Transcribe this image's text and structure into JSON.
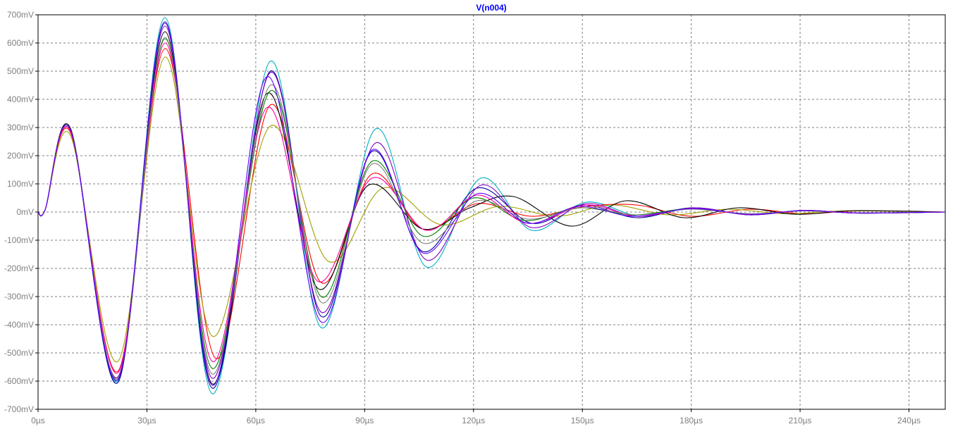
{
  "chart_data": {
    "type": "line",
    "title": "V(n004)",
    "xlabel": "",
    "ylabel": "",
    "xlim": [
      0,
      250
    ],
    "ylim": [
      -700,
      700
    ],
    "x_ticks": [
      0,
      30,
      60,
      90,
      120,
      150,
      180,
      210,
      240
    ],
    "x_tick_labels": [
      "0µs",
      "30µs",
      "60µs",
      "90µs",
      "120µs",
      "150µs",
      "180µs",
      "210µs",
      "240µs"
    ],
    "y_ticks": [
      700,
      600,
      500,
      400,
      300,
      200,
      100,
      0,
      -100,
      -200,
      -300,
      -400,
      -500,
      -600,
      -700
    ],
    "y_tick_labels": [
      "700mV",
      "600mV",
      "500mV",
      "400mV",
      "300mV",
      "200mV",
      "100mV",
      "0mV",
      "-100mV",
      "-200mV",
      "-300mV",
      "-400mV",
      "-500mV",
      "-600mV",
      "-700mV"
    ],
    "grid": true,
    "series": [
      {
        "color": "#00b0c0",
        "values": [
          [
            0,
            0
          ],
          [
            2,
            10
          ],
          [
            9,
            290
          ],
          [
            22,
            -600
          ],
          [
            35,
            690
          ],
          [
            48,
            -645
          ],
          [
            64,
            535
          ],
          [
            78,
            -410
          ],
          [
            93,
            295
          ],
          [
            107,
            -195
          ],
          [
            122,
            120
          ],
          [
            136,
            -65
          ],
          [
            151,
            35
          ],
          [
            166,
            -15
          ],
          [
            181,
            15
          ],
          [
            196,
            -10
          ],
          [
            211,
            6
          ],
          [
            226,
            -4
          ],
          [
            250,
            0
          ]
        ]
      },
      {
        "color": "#0000a0",
        "values": [
          [
            0,
            0
          ],
          [
            2,
            10
          ],
          [
            9,
            290
          ],
          [
            22,
            -605
          ],
          [
            35,
            675
          ],
          [
            48,
            -625
          ],
          [
            64,
            500
          ],
          [
            78,
            -370
          ],
          [
            92,
            215
          ],
          [
            106,
            -140
          ],
          [
            121,
            85
          ],
          [
            136,
            -40
          ],
          [
            150,
            25
          ],
          [
            165,
            -20
          ],
          [
            180,
            15
          ],
          [
            196,
            -10
          ],
          [
            211,
            6
          ],
          [
            226,
            -4
          ],
          [
            250,
            0
          ]
        ]
      },
      {
        "color": "#ff0000",
        "values": [
          [
            0,
            0
          ],
          [
            2,
            10
          ],
          [
            9,
            280
          ],
          [
            22,
            -565
          ],
          [
            35,
            580
          ],
          [
            49,
            -520
          ],
          [
            64,
            380
          ],
          [
            78,
            -250
          ],
          [
            92,
            135
          ],
          [
            106,
            -60
          ],
          [
            121,
            30
          ],
          [
            136,
            -15
          ],
          [
            151,
            20
          ],
          [
            165,
            25
          ],
          [
            180,
            -15
          ],
          [
            196,
            10
          ],
          [
            211,
            -6
          ],
          [
            226,
            4
          ],
          [
            250,
            0
          ]
        ]
      },
      {
        "color": "#a0a000",
        "values": [
          [
            0,
            0
          ],
          [
            2,
            10
          ],
          [
            9,
            270
          ],
          [
            22,
            -530
          ],
          [
            35,
            550
          ],
          [
            48,
            -440
          ],
          [
            64,
            305
          ],
          [
            80,
            -175
          ],
          [
            95,
            85
          ],
          [
            111,
            -45
          ],
          [
            127,
            20
          ],
          [
            143,
            -15
          ],
          [
            158,
            25
          ],
          [
            174,
            -10
          ],
          [
            190,
            10
          ],
          [
            206,
            -6
          ],
          [
            222,
            4
          ],
          [
            250,
            0
          ]
        ]
      },
      {
        "color": "#000000",
        "values": [
          [
            0,
            0
          ],
          [
            2,
            10
          ],
          [
            9,
            295
          ],
          [
            22,
            -595
          ],
          [
            35,
            640
          ],
          [
            48,
            -610
          ],
          [
            63,
            420
          ],
          [
            77,
            -270
          ],
          [
            91,
            95
          ],
          [
            106,
            -60
          ],
          [
            119,
            15
          ],
          [
            131,
            55
          ],
          [
            147,
            -50
          ],
          [
            162,
            40
          ],
          [
            178,
            -20
          ],
          [
            193,
            15
          ],
          [
            209,
            -8
          ],
          [
            225,
            5
          ],
          [
            250,
            0
          ]
        ]
      },
      {
        "color": "#8000c0",
        "values": [
          [
            0,
            0
          ],
          [
            2,
            10
          ],
          [
            9,
            285
          ],
          [
            22,
            -585
          ],
          [
            35,
            660
          ],
          [
            48,
            -590
          ],
          [
            64,
            495
          ],
          [
            78,
            -355
          ],
          [
            93,
            245
          ],
          [
            107,
            -170
          ],
          [
            122,
            95
          ],
          [
            136,
            -55
          ],
          [
            151,
            30
          ],
          [
            165,
            -15
          ],
          [
            181,
            15
          ],
          [
            196,
            -10
          ],
          [
            211,
            6
          ],
          [
            226,
            -4
          ],
          [
            250,
            0
          ]
        ]
      },
      {
        "color": "#008000",
        "values": [
          [
            0,
            0
          ],
          [
            2,
            10
          ],
          [
            9,
            290
          ],
          [
            22,
            -590
          ],
          [
            35,
            615
          ],
          [
            48,
            -555
          ],
          [
            64,
            430
          ],
          [
            78,
            -300
          ],
          [
            92,
            180
          ],
          [
            106,
            -85
          ],
          [
            120,
            50
          ],
          [
            134,
            -30
          ],
          [
            149,
            15
          ],
          [
            164,
            -10
          ],
          [
            180,
            12
          ],
          [
            196,
            -8
          ],
          [
            211,
            5
          ],
          [
            226,
            -3
          ],
          [
            250,
            0
          ]
        ]
      },
      {
        "color": "#ff00a0",
        "values": [
          [
            0,
            0
          ],
          [
            2,
            10
          ],
          [
            9,
            285
          ],
          [
            22,
            -570
          ],
          [
            35,
            600
          ],
          [
            48,
            -530
          ],
          [
            63,
            370
          ],
          [
            77,
            -245
          ],
          [
            92,
            120
          ],
          [
            107,
            -65
          ],
          [
            121,
            60
          ],
          [
            135,
            -40
          ],
          [
            151,
            25
          ],
          [
            165,
            -15
          ],
          [
            180,
            12
          ],
          [
            196,
            -8
          ],
          [
            211,
            5
          ],
          [
            226,
            -3
          ],
          [
            250,
            0
          ]
        ]
      },
      {
        "color": "#808080",
        "values": [
          [
            0,
            0
          ],
          [
            2,
            10
          ],
          [
            9,
            290
          ],
          [
            22,
            -590
          ],
          [
            35,
            620
          ],
          [
            48,
            -575
          ],
          [
            64,
            450
          ],
          [
            78,
            -320
          ],
          [
            92,
            170
          ],
          [
            106,
            -110
          ],
          [
            121,
            40
          ],
          [
            135,
            -25
          ],
          [
            150,
            15
          ],
          [
            165,
            -10
          ],
          [
            180,
            10
          ],
          [
            196,
            -6
          ],
          [
            211,
            4
          ],
          [
            226,
            -3
          ],
          [
            250,
            0
          ]
        ]
      },
      {
        "color": "#6000ff",
        "values": [
          [
            0,
            0
          ],
          [
            2,
            10
          ],
          [
            9,
            290
          ],
          [
            22,
            -595
          ],
          [
            35,
            670
          ],
          [
            48,
            -615
          ],
          [
            63,
            480
          ],
          [
            78,
            -390
          ],
          [
            92,
            220
          ],
          [
            106,
            -145
          ],
          [
            121,
            65
          ],
          [
            135,
            -40
          ],
          [
            149,
            20
          ],
          [
            164,
            -15
          ],
          [
            180,
            12
          ],
          [
            196,
            -8
          ],
          [
            211,
            5
          ],
          [
            226,
            -3
          ],
          [
            250,
            0
          ]
        ]
      }
    ]
  }
}
